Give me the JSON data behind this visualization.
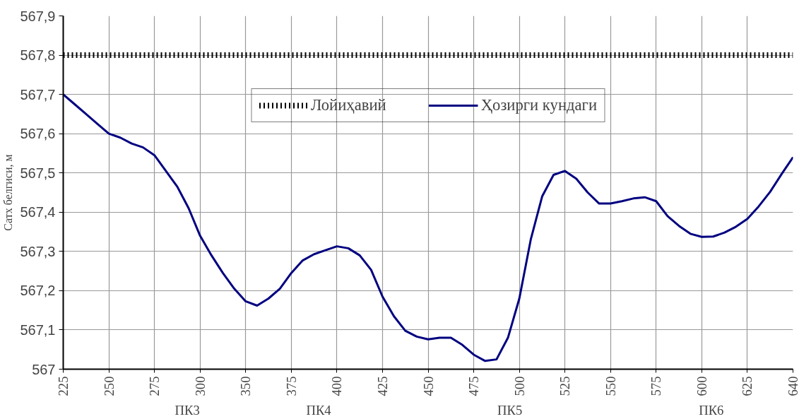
{
  "chart_data": {
    "type": "line",
    "ylabel": "Сатх белгиси, м",
    "categories": [
      "225",
      null,
      null,
      null,
      "250",
      null,
      null,
      null,
      "275",
      null,
      null,
      null,
      "300",
      null,
      null,
      null,
      "350",
      null,
      null,
      null,
      "375",
      null,
      null,
      null,
      "400",
      null,
      null,
      null,
      "425",
      null,
      null,
      null,
      "450",
      null,
      null,
      null,
      "475",
      null,
      null,
      null,
      "500",
      null,
      null,
      null,
      "525",
      null,
      null,
      null,
      "550",
      null,
      null,
      null,
      "575",
      null,
      null,
      null,
      "600",
      null,
      null,
      null,
      "625",
      null,
      null,
      null,
      "640"
    ],
    "series": [
      {
        "name": "Лойиҳавий",
        "color": "#000000",
        "line_style": "dotted",
        "values": [
          567.8,
          567.8,
          567.8,
          567.8,
          567.8,
          567.8,
          567.8,
          567.8,
          567.8,
          567.8,
          567.8,
          567.8,
          567.8,
          567.8,
          567.8,
          567.8,
          567.8,
          567.8,
          567.8,
          567.8,
          567.8,
          567.8,
          567.8,
          567.8,
          567.8,
          567.8,
          567.8,
          567.8,
          567.8,
          567.8,
          567.8,
          567.8,
          567.8,
          567.8,
          567.8,
          567.8,
          567.8,
          567.8,
          567.8,
          567.8,
          567.8,
          567.8,
          567.8,
          567.8,
          567.8,
          567.8,
          567.8,
          567.8,
          567.8,
          567.8,
          567.8,
          567.8,
          567.8,
          567.8,
          567.8,
          567.8,
          567.8,
          567.8,
          567.8,
          567.8,
          567.8,
          567.8,
          567.8,
          567.8,
          567.8
        ]
      },
      {
        "name": "Ҳозирги кундаги",
        "color": "#000080",
        "line_style": "solid",
        "values": [
          567.7,
          567.675,
          567.65,
          567.625,
          567.6,
          567.59,
          567.575,
          567.565,
          567.545,
          567.505,
          567.465,
          567.41,
          567.34,
          567.29,
          567.245,
          567.205,
          567.173,
          567.162,
          567.18,
          567.205,
          567.245,
          567.277,
          567.293,
          567.303,
          567.313,
          567.308,
          567.29,
          567.253,
          567.185,
          567.135,
          567.098,
          567.083,
          567.076,
          567.08,
          567.08,
          567.062,
          567.037,
          567.021,
          567.025,
          567.08,
          567.18,
          567.33,
          567.44,
          567.495,
          567.505,
          567.485,
          567.45,
          567.422,
          567.422,
          567.428,
          567.435,
          567.438,
          567.428,
          567.39,
          567.365,
          567.345,
          567.337,
          567.338,
          567.348,
          567.363,
          567.383,
          567.415,
          567.452,
          567.497,
          567.54
        ]
      }
    ],
    "ylim": [
      567,
      567.9
    ],
    "yticks": [
      567,
      {
        "value": 567.1,
        "label": "567,1"
      },
      {
        "value": 567.2,
        "label": "567,2"
      },
      {
        "value": 567.3,
        "label": "567,3"
      },
      {
        "value": 567.4,
        "label": "567,4"
      },
      {
        "value": 567.5,
        "label": "567,5"
      },
      {
        "value": 567.6,
        "label": "567,6"
      },
      {
        "value": 567.7,
        "label": "567,7"
      },
      {
        "value": 567.8,
        "label": "567,8"
      },
      {
        "value": 567.9,
        "label": "567,9"
      }
    ],
    "annotations": [
      "ПК3",
      "ПК4",
      "ПК5",
      "ПК6"
    ],
    "grid": true,
    "legend": "top"
  }
}
